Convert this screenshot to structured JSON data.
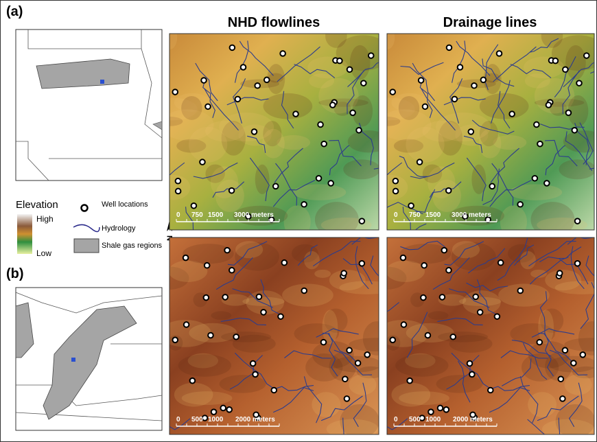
{
  "figure": {
    "panel_a_label": "(a)",
    "panel_b_label": "(b)",
    "column_titles": [
      "NHD flowlines",
      "Drainage lines"
    ],
    "legend": {
      "elevation_title": "Elevation",
      "high": "High",
      "low": "Low",
      "wells": "Well locations",
      "hydrology": "Hydrology",
      "shale": "Shale gas regions",
      "north": "N"
    },
    "scale_a": [
      "0",
      "750",
      "1500",
      "3000 meters"
    ],
    "scale_b": [
      "0",
      "500",
      "1000",
      "2000 meters"
    ]
  }
}
